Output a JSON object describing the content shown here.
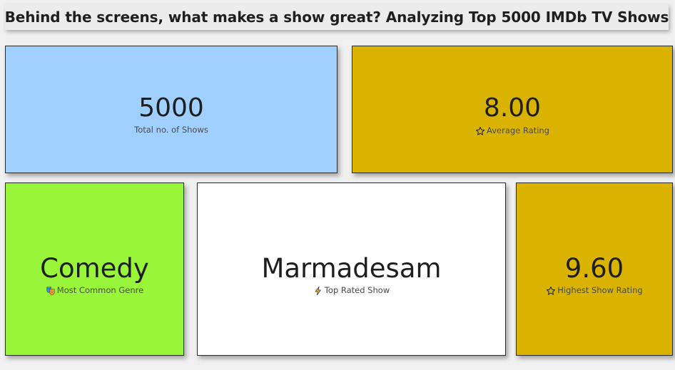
{
  "header": {
    "title": "Behind the screens, what makes a show great? Analyzing Top 5000 IMDb TV Shows"
  },
  "cards": {
    "total_shows": {
      "value": "5000",
      "label": "Total no. of Shows",
      "bg": "#a0d0ff"
    },
    "average_rating": {
      "value": "8.00",
      "label": "Average Rating",
      "icon": "star-icon",
      "bg": "#d9b300"
    },
    "common_genre": {
      "value": "Comedy",
      "label": "Most Common Genre",
      "icon": "theater-masks-icon",
      "bg": "#99f53a"
    },
    "top_show": {
      "value": "Marmadesam",
      "label": "Top Rated Show",
      "icon": "lightning-icon",
      "bg": "#ffffff"
    },
    "highest_rating": {
      "value": "9.60",
      "label": "Highest Show Rating",
      "icon": "star-icon",
      "bg": "#d9b300"
    }
  }
}
